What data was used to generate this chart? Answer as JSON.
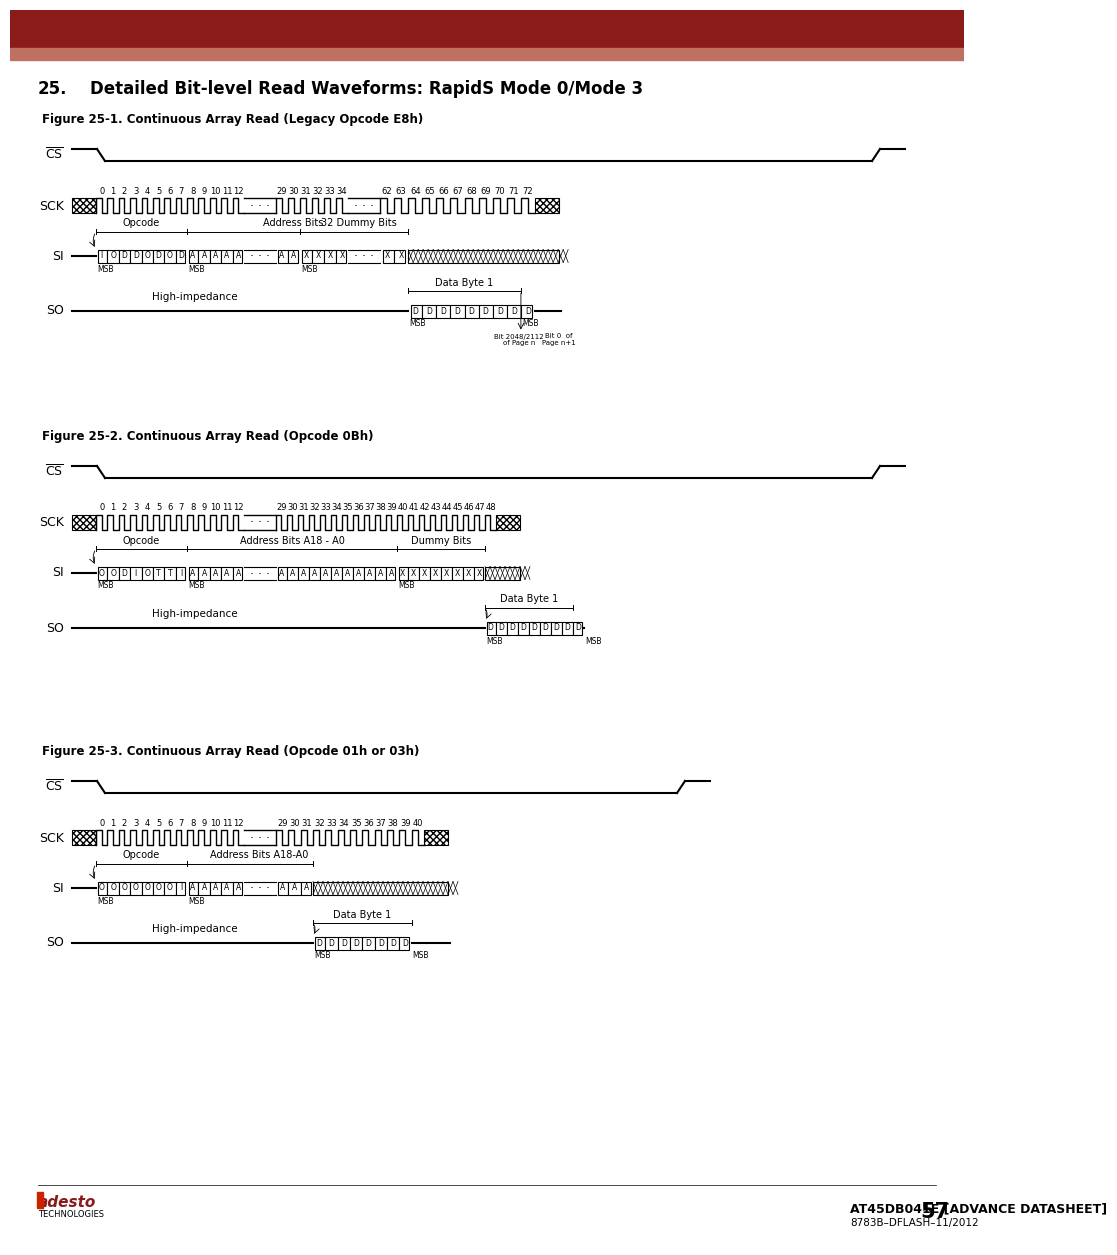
{
  "title_num": "25.",
  "title_text": "Detailed Bit-level Read Waveforms: RapidS Mode 0/Mode 3",
  "header_dark": "#8B1A1A",
  "header_light": "#C07060",
  "fig1_title": "Figure 25-1. Continuous Array Read (Legacy Opcode E8h)",
  "fig2_title": "Figure 25-2. Continuous Array Read (Opcode 0Bh)",
  "fig3_title": "Figure 25-3. Continuous Array Read (Opcode 01h or 03h)",
  "footer_text": "AT45DB041E [ADVANCE DATASHEET]",
  "footer_page": "57",
  "footer_sub": "8783B–DFLASH–11/2012"
}
